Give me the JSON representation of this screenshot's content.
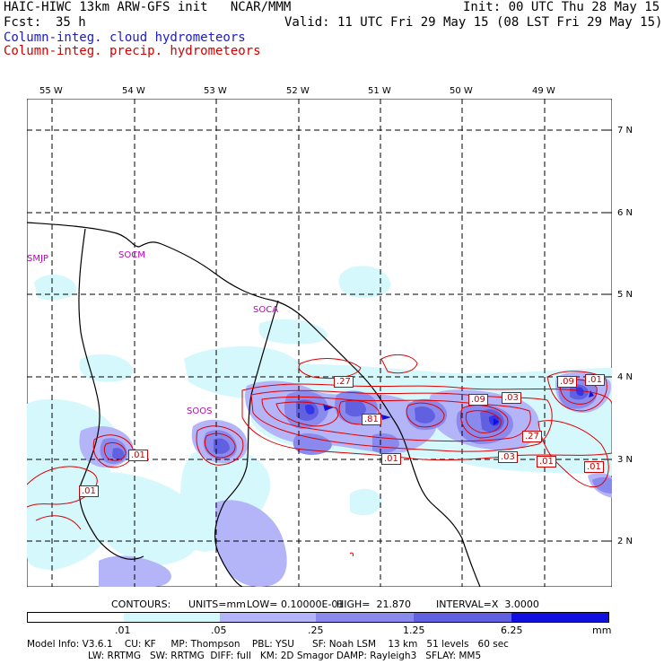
{
  "header": {
    "title_left": "HAIC-HIWC 13km ARW-GFS init   NCAR/MMM",
    "init": "Init: 00 UTC Thu 28 May 15",
    "fcst_label": "Fcst:",
    "fcst_value": "35 h",
    "valid": "Valid: 11 UTC Fri 29 May 15 (08 LST Fri 29 May 15)",
    "field1": "Column-integ. cloud hydrometeors",
    "field2": "Column-integ. precip. hydrometeors"
  },
  "map": {
    "lon_labels": [
      "55 W",
      "54 W",
      "53 W",
      "52 W",
      "51 W",
      "50 W",
      "49 W"
    ],
    "lat_labels": [
      "7 N",
      "6 N",
      "5 N",
      "4 N",
      "3 N",
      "2 N"
    ],
    "sites": [
      "SMJP",
      "SOCM",
      "SOCA",
      "SOOS"
    ],
    "contour_labels": [
      ".27",
      ".81",
      ".09",
      ".03",
      ".27",
      ".03",
      ".01",
      ".09",
      ".01",
      ".01",
      ".01",
      ".01"
    ],
    "colors": {
      "fill1": "#d4f8fc",
      "fill2": "#b4b4f8",
      "fill3": "#8a8aee",
      "fill4": "#6060e0",
      "fill5": "#3434e8",
      "fill6": "#1010e0",
      "contour": "#e00000",
      "coast": "#000000"
    }
  },
  "contour_info": {
    "contours": "CONTOURS:",
    "units": "UNITS=mm",
    "low": "LOW= 0.10000E-01",
    "high": "HIGH=  21.870",
    "interval": "INTERVAL=X  3.0000"
  },
  "legend": {
    "ticks": [
      ".01",
      ".05",
      ".25",
      "1.25",
      "6.25"
    ],
    "units": "mm"
  },
  "footer": {
    "line1": "Model Info: V3.6.1    CU: KF     MP: Thompson    PBL: YSU      SF: Noah LSM    13 km   51 levels   60 sec",
    "line2": "LW: RRTMG   SW: RRTMG  DIFF: full   KM: 2D Smagor DAMP: Rayleigh3   SFLAY: MM5"
  }
}
